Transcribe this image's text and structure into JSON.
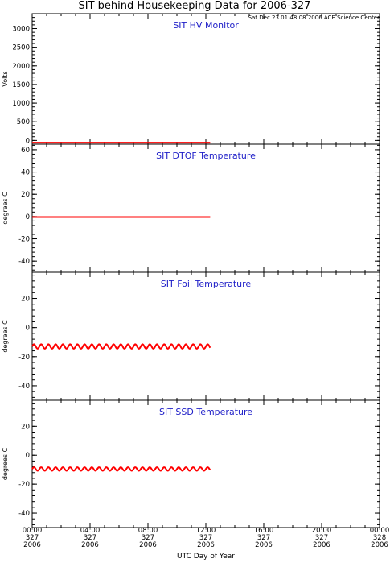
{
  "title": "SIT behind Housekeeping Data for 2006-327",
  "timestamp": "Sat Dec 23 01:48:08 2006 ACE Science Center",
  "xlabel": "UTC Day of Year",
  "x_ticks": [
    {
      "time": "00:00",
      "doy": "327",
      "year": "2006"
    },
    {
      "time": "04:00",
      "doy": "327",
      "year": "2006"
    },
    {
      "time": "08:00",
      "doy": "327",
      "year": "2006"
    },
    {
      "time": "12:00",
      "doy": "327",
      "year": "2006"
    },
    {
      "time": "16:00",
      "doy": "327",
      "year": "2006"
    },
    {
      "time": "20:00",
      "doy": "327",
      "year": "2006"
    },
    {
      "time": "00:00",
      "doy": "328",
      "year": "2006"
    }
  ],
  "colors": {
    "data": "#ff0000",
    "panel_title": "#2020c8",
    "axis": "#000000"
  },
  "chart_data": [
    {
      "type": "line",
      "title": "SIT HV Monitor",
      "ylabel": "Volts",
      "x_unit": "hours",
      "xlim": [
        0,
        24
      ],
      "ylim": [
        -100,
        3400
      ],
      "yticks": [
        0,
        500,
        1000,
        1500,
        2000,
        2500,
        3000
      ],
      "series": [
        {
          "x": [
            0,
            2,
            4,
            6,
            8,
            10,
            12.3
          ],
          "values": [
            -60,
            -60,
            -60,
            -60,
            -60,
            -60,
            -60
          ]
        }
      ]
    },
    {
      "type": "line",
      "title": "SIT DTOF Temperature",
      "ylabel": "degrees C",
      "x_unit": "hours",
      "xlim": [
        0,
        24
      ],
      "ylim": [
        -50,
        65
      ],
      "yticks": [
        -40,
        -20,
        0,
        20,
        40,
        60
      ],
      "series": [
        {
          "x": [
            0,
            2,
            4,
            6,
            8,
            10,
            12.3
          ],
          "values": [
            -0.5,
            -0.5,
            -0.5,
            -0.5,
            -0.5,
            -0.5,
            -0.5
          ]
        }
      ]
    },
    {
      "type": "line",
      "title": "SIT Foil Temperature",
      "ylabel": "degrees C",
      "x_unit": "hours",
      "xlim": [
        0,
        24
      ],
      "ylim": [
        -50,
        38
      ],
      "yticks": [
        -40,
        -20,
        0,
        20
      ],
      "oscillation": {
        "mean": -13,
        "amplitude": 1.5,
        "period_hours": 0.5
      },
      "series": [
        {
          "x_start": 0,
          "x_end": 12.3
        }
      ]
    },
    {
      "type": "line",
      "title": "SIT SSD Temperature",
      "ylabel": "degrees C",
      "x_unit": "hours",
      "xlim": [
        0,
        24
      ],
      "ylim": [
        -50,
        38
      ],
      "yticks": [
        -40,
        -20,
        0,
        20
      ],
      "oscillation": {
        "mean": -9.5,
        "amplitude": 1.2,
        "period_hours": 0.5
      },
      "series": [
        {
          "x_start": 0,
          "x_end": 12.3
        }
      ]
    }
  ]
}
